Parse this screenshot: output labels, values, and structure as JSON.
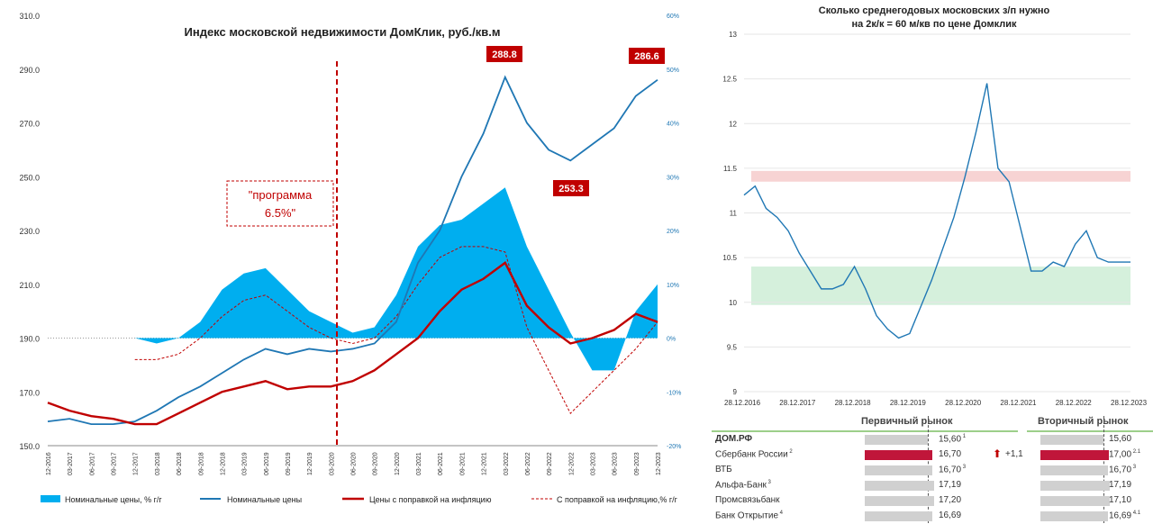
{
  "chart_data": [
    {
      "type": "line",
      "title": "Индекс московской недвижимости ДомКлик, руб./кв.м",
      "y_left": {
        "min": 150,
        "max": 310,
        "ticks": [
          "150.0",
          "170.0",
          "190.0",
          "210.0",
          "230.0",
          "250.0",
          "270.0",
          "290.0",
          "310.0"
        ]
      },
      "y_right": {
        "min": -20,
        "max": 60,
        "ticks": [
          "-20%",
          "-10%",
          "0%",
          "10%",
          "20%",
          "30%",
          "40%",
          "50%",
          "60%"
        ]
      },
      "x_ticks": [
        "12-2016",
        "03-2017",
        "06-2017",
        "09-2017",
        "12-2017",
        "03-2018",
        "06-2018",
        "09-2018",
        "12-2018",
        "03-2019",
        "06-2019",
        "09-2019",
        "12-2019",
        "03-2020",
        "06-2020",
        "09-2020",
        "12-2020",
        "03-2021",
        "06-2021",
        "09-2021",
        "12-2021",
        "03-2022",
        "06-2022",
        "09-2022",
        "12-2022",
        "03-2023",
        "06-2023",
        "09-2023",
        "12-2023"
      ],
      "series": [
        {
          "name": "Номинальные цены",
          "color": "#1f77b4",
          "x": [
            0,
            1,
            2,
            3,
            4,
            5,
            6,
            7,
            8,
            9,
            10,
            11,
            12,
            13,
            14,
            15,
            16,
            17,
            18,
            19,
            20,
            21,
            22,
            23,
            24,
            25,
            26,
            27,
            28
          ],
          "values": [
            159,
            160,
            158,
            158,
            159,
            163,
            168,
            172,
            177,
            182,
            186,
            184,
            186,
            185,
            186,
            188,
            196,
            218,
            230,
            250,
            266,
            287,
            270,
            260,
            256,
            262,
            268,
            280,
            286
          ]
        },
        {
          "name": "Цены с поправкой на инфляцию",
          "color": "#c00000",
          "x": [
            0,
            1,
            2,
            3,
            4,
            5,
            6,
            7,
            8,
            9,
            10,
            11,
            12,
            13,
            14,
            15,
            16,
            17,
            18,
            19,
            20,
            21,
            22,
            23,
            24,
            25,
            26,
            27,
            28
          ],
          "values": [
            166,
            163,
            161,
            160,
            158,
            158,
            162,
            166,
            170,
            172,
            174,
            171,
            172,
            172,
            174,
            178,
            184,
            190,
            200,
            208,
            212,
            218,
            202,
            194,
            188,
            190,
            193,
            199,
            196
          ]
        },
        {
          "name": "Номинальные цены, % г/г",
          "color": "#00aeef",
          "axis": "right",
          "x": [
            4,
            5,
            6,
            7,
            8,
            9,
            10,
            11,
            12,
            13,
            14,
            15,
            16,
            17,
            18,
            19,
            20,
            21,
            22,
            23,
            24,
            25,
            26,
            27,
            28
          ],
          "values": [
            0,
            -1,
            0,
            3,
            9,
            12,
            13,
            9,
            5,
            3,
            1,
            2,
            8,
            17,
            21,
            22,
            25,
            28,
            17,
            9,
            1,
            -6,
            -6,
            5,
            10
          ]
        },
        {
          "name": "С поправкой на инфляцию,% г/г",
          "color": "#c00000",
          "axis": "right",
          "x": [
            4,
            5,
            6,
            7,
            8,
            9,
            10,
            11,
            12,
            13,
            14,
            15,
            16,
            17,
            18,
            19,
            20,
            21,
            22,
            23,
            24,
            25,
            26,
            27,
            28
          ],
          "values": [
            -4,
            -4,
            -3,
            0,
            4,
            7,
            8,
            5,
            2,
            0,
            -1,
            0,
            4,
            10,
            15,
            17,
            17,
            16,
            2,
            -6,
            -14,
            -10,
            -6,
            -2,
            3
          ]
        }
      ],
      "annotations": [
        {
          "text": "288.8"
        },
        {
          "text": "253.3"
        },
        {
          "text": "286.6"
        },
        {
          "text": "\"программа"
        },
        {
          "text": "6.5%\""
        }
      ],
      "legend": [
        "Номинальные цены, % г/г",
        "Номинальные цены",
        "Цены с поправкой на инфляцию",
        "С поправкой на инфляцию,% г/г"
      ]
    },
    {
      "type": "line",
      "title": "Сколько среднегодовых московских з/п нужно",
      "subtitle": "на 2к/к = 60 м/кв по цене Домклик",
      "y": {
        "min": 9,
        "max": 13,
        "ticks": [
          "9",
          "9.5",
          "10",
          "10.5",
          "11",
          "11.5",
          "12",
          "12.5",
          "13"
        ]
      },
      "x_ticks": [
        "28.12.2016",
        "28.12.2017",
        "28.12.2018",
        "28.12.2019",
        "28.12.2020",
        "28.12.2021",
        "28.12.2022",
        "28.12.2023"
      ],
      "bands": [
        {
          "from": 11.35,
          "to": 11.47,
          "color": "#f7d3d3"
        },
        {
          "from": 9.97,
          "to": 10.4,
          "color": "#d5f0dc"
        }
      ],
      "series": [
        {
          "name": "ratio",
          "color": "#1f77b4",
          "x": [
            0,
            0.2,
            0.4,
            0.6,
            0.8,
            1,
            1.2,
            1.4,
            1.6,
            1.8,
            2,
            2.2,
            2.4,
            2.6,
            2.8,
            3,
            3.2,
            3.4,
            3.6,
            3.8,
            4,
            4.2,
            4.4,
            4.6,
            4.8,
            5,
            5.2,
            5.4,
            5.6,
            5.8,
            6,
            6.2,
            6.4,
            6.6,
            6.8,
            7
          ],
          "values": [
            11.2,
            11.3,
            11.05,
            10.95,
            10.8,
            10.55,
            10.35,
            10.15,
            10.15,
            10.2,
            10.4,
            10.15,
            9.85,
            9.7,
            9.6,
            9.65,
            9.95,
            10.25,
            10.6,
            10.95,
            11.4,
            11.9,
            12.45,
            11.5,
            11.35,
            10.85,
            10.35,
            10.35,
            10.45,
            10.4,
            10.65,
            10.8,
            10.5,
            10.45,
            10.45,
            10.45
          ]
        }
      ]
    }
  ],
  "table": {
    "header_primary": "Первичный рынок",
    "header_secondary": "Вторичный рынок",
    "rows": [
      {
        "name": "ДОМ.РФ",
        "p": "15,60",
        "ps": "1",
        "s": "15,60",
        "ss": "",
        "pv": 15.6,
        "sv": 15.6,
        "bold": true
      },
      {
        "name": "Сбербанк России",
        "ns": "2",
        "p": "16,70",
        "ps": "",
        "s": "17,00",
        "ss": "2.1",
        "pv": 16.7,
        "sv": 17.0,
        "hl": true,
        "change": "+1,1"
      },
      {
        "name": "ВТБ",
        "p": "16,70",
        "ps": "3",
        "s": "16,70",
        "ss": "3",
        "pv": 16.7,
        "sv": 16.7
      },
      {
        "name": "Альфа-Банк",
        "ns": "3",
        "p": "17,19",
        "ps": "",
        "s": "17,19",
        "ss": "",
        "pv": 17.19,
        "sv": 17.19
      },
      {
        "name": "Промсвязьбанк",
        "p": "17,20",
        "ps": "",
        "s": "17,10",
        "ss": "",
        "pv": 17.2,
        "sv": 17.1
      },
      {
        "name": "Банк Открытие",
        "ns": "4",
        "p": "16,69",
        "ps": "",
        "s": "16,69",
        "ss": "4.1",
        "pv": 16.69,
        "sv": 16.69
      }
    ]
  }
}
